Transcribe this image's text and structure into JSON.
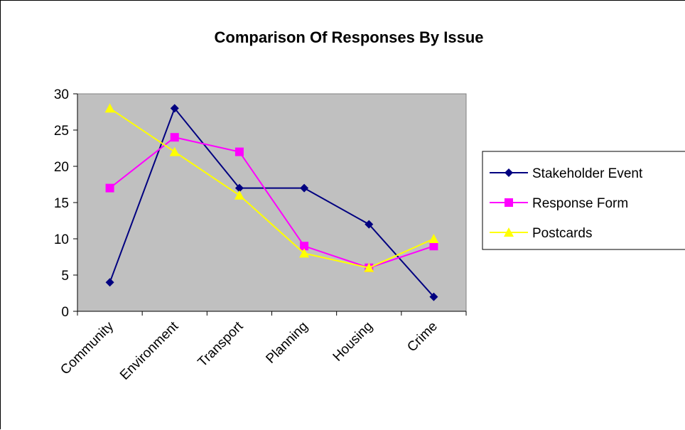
{
  "chart_data": {
    "type": "line",
    "title": "Comparison Of Responses By Issue",
    "categories": [
      "Community",
      "Environment",
      "Transport",
      "Planning",
      "Housing",
      "Crime"
    ],
    "ylim": [
      0,
      30
    ],
    "yticks": [
      0,
      5,
      10,
      15,
      20,
      25,
      30
    ],
    "grid": false,
    "legend_position": "right",
    "plot_background": "#c0c0c0",
    "series": [
      {
        "name": "Stakeholder Event",
        "values": [
          4,
          28,
          17,
          17,
          12,
          2
        ],
        "color": "#000080",
        "marker": "diamond"
      },
      {
        "name": "Response Form",
        "values": [
          17,
          24,
          22,
          9,
          6,
          9
        ],
        "color": "#ff00ff",
        "marker": "square"
      },
      {
        "name": "Postcards",
        "values": [
          28,
          22,
          16,
          8,
          6,
          10
        ],
        "color": "#ffff00",
        "marker": "triangle"
      }
    ]
  }
}
